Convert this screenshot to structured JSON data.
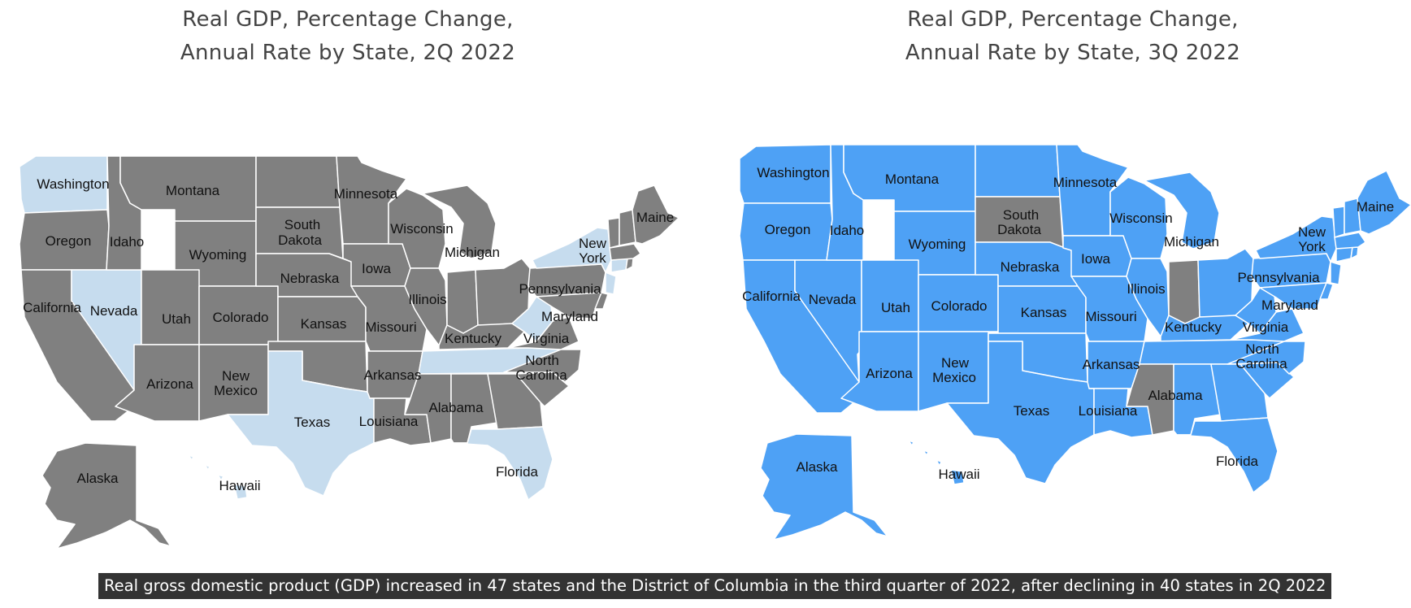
{
  "colors": {
    "declined": "#808080",
    "grew_2q": "#c6dcee",
    "grew_3q": "#4ea1f5",
    "border": "#ffffff",
    "caption_bg": "#333333"
  },
  "maps": [
    {
      "title_line1": "Real GDP, Percentage Change,",
      "title_line2": "Annual Rate by State, 2Q 2022",
      "increase_color": "#c6dcee",
      "decrease_color": "#808080",
      "increased_states": [
        "Washington",
        "Nevada",
        "Texas",
        "Florida",
        "Tennessee",
        "West Virginia",
        "New York",
        "New Jersey",
        "Connecticut",
        "Hawaii"
      ]
    },
    {
      "title_line1": "Real GDP, Percentage Change,",
      "title_line2": "Annual Rate by State, 3Q 2022",
      "increase_color": "#4ea1f5",
      "decrease_color": "#808080",
      "declined_states": [
        "South Dakota",
        "Indiana",
        "Mississippi"
      ]
    }
  ],
  "labels": {
    "washington": "Washington",
    "oregon": "Oregon",
    "california": "California",
    "idaho": "Idaho",
    "nevada": "Nevada",
    "montana": "Montana",
    "wyoming": "Wyoming",
    "utah": "Utah",
    "colorado": "Colorado",
    "arizona": "Arizona",
    "new_mexico_1": "New",
    "new_mexico_2": "Mexico",
    "south_dakota_1": "South",
    "south_dakota_2": "Dakota",
    "nebraska": "Nebraska",
    "kansas": "Kansas",
    "texas": "Texas",
    "minnesota": "Minnesota",
    "iowa": "Iowa",
    "missouri": "Missouri",
    "arkansas": "Arkansas",
    "louisiana": "Louisiana",
    "wisconsin": "Wisconsin",
    "illinois": "Illinois",
    "michigan": "Michigan",
    "kentucky": "Kentucky",
    "alabama": "Alabama",
    "florida": "Florida",
    "north_carolina_1": "North",
    "north_carolina_2": "Carolina",
    "virginia": "Virginia",
    "maryland": "Maryland",
    "pennsylvania": "Pennsylvania",
    "new_york_1": "New",
    "new_york_2": "York",
    "maine": "Maine",
    "alaska": "Alaska",
    "hawaii": "Hawaii"
  },
  "caption": "Real gross domestic product (GDP) increased in 47 states and the District of Columbia in the third quarter of 2022, after declining in 40 states in 2Q 2022"
}
